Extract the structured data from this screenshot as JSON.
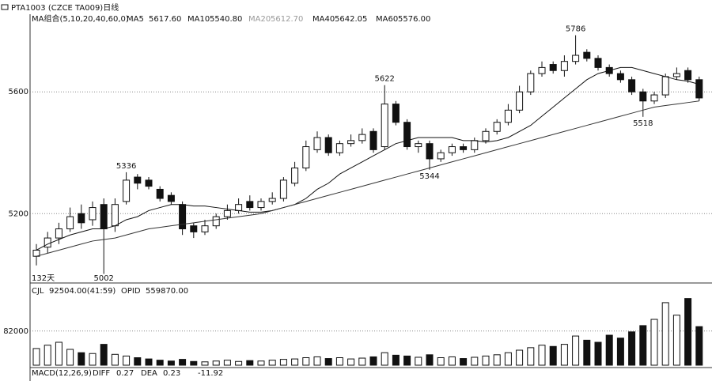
{
  "chart_data": {
    "type": "candlestick",
    "title": "PTA1003 (CZCE TA009)日线",
    "ma_group": "MA组合(5,10,20,40,60,0)",
    "ylim": [
      4980,
      5855
    ],
    "yticks": [
      5200,
      5600
    ],
    "grid": true,
    "open": [
      5060,
      5090,
      5120,
      5150,
      5200,
      5180,
      5230,
      5160,
      5240,
      5320,
      5310,
      5280,
      5260,
      5230,
      5160,
      5140,
      5160,
      5190,
      5210,
      5240,
      5220,
      5240,
      5250,
      5300,
      5350,
      5410,
      5450,
      5400,
      5430,
      5440,
      5470,
      5420,
      5560,
      5500,
      5420,
      5430,
      5380,
      5400,
      5420,
      5410,
      5440,
      5470,
      5500,
      5540,
      5600,
      5660,
      5690,
      5670,
      5700,
      5730,
      5710,
      5680,
      5660,
      5640,
      5600,
      5570,
      5590,
      5650,
      5670,
      5640
    ],
    "high": [
      5100,
      5140,
      5170,
      5220,
      5230,
      5240,
      5250,
      5250,
      5336,
      5330,
      5320,
      5290,
      5270,
      5240,
      5170,
      5180,
      5200,
      5230,
      5250,
      5260,
      5250,
      5270,
      5320,
      5370,
      5440,
      5470,
      5460,
      5440,
      5460,
      5480,
      5480,
      5622,
      5570,
      5510,
      5440,
      5440,
      5410,
      5430,
      5430,
      5450,
      5480,
      5510,
      5560,
      5620,
      5670,
      5700,
      5700,
      5720,
      5786,
      5740,
      5720,
      5690,
      5670,
      5650,
      5610,
      5600,
      5660,
      5680,
      5680,
      5650
    ],
    "low": [
      5030,
      5070,
      5100,
      5140,
      5150,
      5160,
      5002,
      5140,
      5230,
      5280,
      5280,
      5240,
      5230,
      5130,
      5120,
      5130,
      5150,
      5180,
      5200,
      5210,
      5210,
      5230,
      5240,
      5290,
      5340,
      5400,
      5390,
      5390,
      5420,
      5430,
      5400,
      5410,
      5490,
      5410,
      5400,
      5344,
      5370,
      5390,
      5400,
      5400,
      5430,
      5460,
      5490,
      5530,
      5590,
      5650,
      5660,
      5650,
      5690,
      5700,
      5670,
      5650,
      5630,
      5590,
      5518,
      5560,
      5580,
      5640,
      5630,
      5570
    ],
    "close": [
      5080,
      5120,
      5150,
      5190,
      5170,
      5220,
      5150,
      5230,
      5310,
      5300,
      5290,
      5250,
      5240,
      5150,
      5140,
      5160,
      5190,
      5210,
      5230,
      5220,
      5240,
      5250,
      5310,
      5350,
      5420,
      5450,
      5400,
      5430,
      5440,
      5460,
      5410,
      5560,
      5500,
      5420,
      5430,
      5380,
      5400,
      5420,
      5410,
      5440,
      5470,
      5500,
      5540,
      5600,
      5660,
      5680,
      5670,
      5700,
      5720,
      5710,
      5680,
      5660,
      5640,
      5600,
      5570,
      5590,
      5650,
      5660,
      5640,
      5580
    ],
    "high_labels": [
      5336,
      5622,
      5786
    ],
    "low_labels": [
      5002,
      5344,
      5518
    ],
    "period_label": "132天",
    "series": [
      {
        "name": "MA5",
        "current": {
          "value": 5617.6,
          "label": "5617.60"
        }
      },
      {
        "name": "MA10",
        "current": {
          "value": 5540.8,
          "label": "5540.80"
        },
        "values": [
          5080,
          5100,
          5115,
          5130,
          5140,
          5150,
          5150,
          5160,
          5180,
          5190,
          5210,
          5220,
          5230,
          5230,
          5225,
          5225,
          5220,
          5215,
          5210,
          5205,
          5205,
          5210,
          5220,
          5230,
          5250,
          5280,
          5300,
          5330,
          5350,
          5370,
          5390,
          5410,
          5430,
          5440,
          5450,
          5450,
          5450,
          5450,
          5440,
          5440,
          5435,
          5440,
          5450,
          5470,
          5490,
          5520,
          5550,
          5580,
          5610,
          5640,
          5660,
          5670,
          5680,
          5680,
          5670,
          5660,
          5650,
          5640,
          5635,
          5625
        ]
      },
      {
        "name": "MA20",
        "current": {
          "value": 5612.7,
          "label": "5612.70"
        }
      },
      {
        "name": "MA40",
        "current": {
          "value": 5642.05,
          "label": "5642.05"
        },
        "values": [
          5060,
          5070,
          5080,
          5090,
          5100,
          5110,
          5115,
          5120,
          5130,
          5140,
          5150,
          5155,
          5160,
          5165,
          5170,
          5175,
          5180,
          5185,
          5190,
          5195,
          5200,
          5210,
          5220,
          5230,
          5240,
          5250,
          5260,
          5270,
          5280,
          5290,
          5300,
          5310,
          5320,
          5330,
          5340,
          5350,
          5360,
          5370,
          5380,
          5390,
          5400,
          5410,
          5420,
          5430,
          5440,
          5450,
          5460,
          5470,
          5480,
          5490,
          5500,
          5510,
          5520,
          5530,
          5540,
          5550,
          5555,
          5560,
          5565,
          5570
        ]
      },
      {
        "name": "MA60",
        "current": {
          "value": 5576,
          "label": "5576.00"
        }
      }
    ],
    "volume": {
      "label": "CJL",
      "reading": "92504.00(41:59)",
      "oi_label": "OPID",
      "oi_reading": "559870.00",
      "ylim": [
        0,
        165000
      ],
      "yticks": [
        82000
      ],
      "values": [
        40000,
        48000,
        55000,
        38000,
        30000,
        28000,
        50000,
        26000,
        22000,
        18000,
        15000,
        12000,
        10000,
        14000,
        9000,
        8000,
        10000,
        12000,
        9000,
        11000,
        10000,
        12000,
        14000,
        15000,
        18000,
        20000,
        16000,
        18000,
        15000,
        17000,
        20000,
        30000,
        24000,
        22000,
        19000,
        25000,
        18000,
        20000,
        16000,
        19000,
        22000,
        25000,
        30000,
        36000,
        42000,
        48000,
        45000,
        50000,
        70000,
        60000,
        55000,
        72000,
        65000,
        80000,
        95000,
        110000,
        150000,
        120000,
        160000,
        92504
      ]
    },
    "macd": {
      "label": "MACD(12,26,9)",
      "diff_label": "DIFF",
      "diff": 0.27,
      "dea_label": "DEA",
      "dea": 0.23,
      "macd": -11.92
    }
  }
}
